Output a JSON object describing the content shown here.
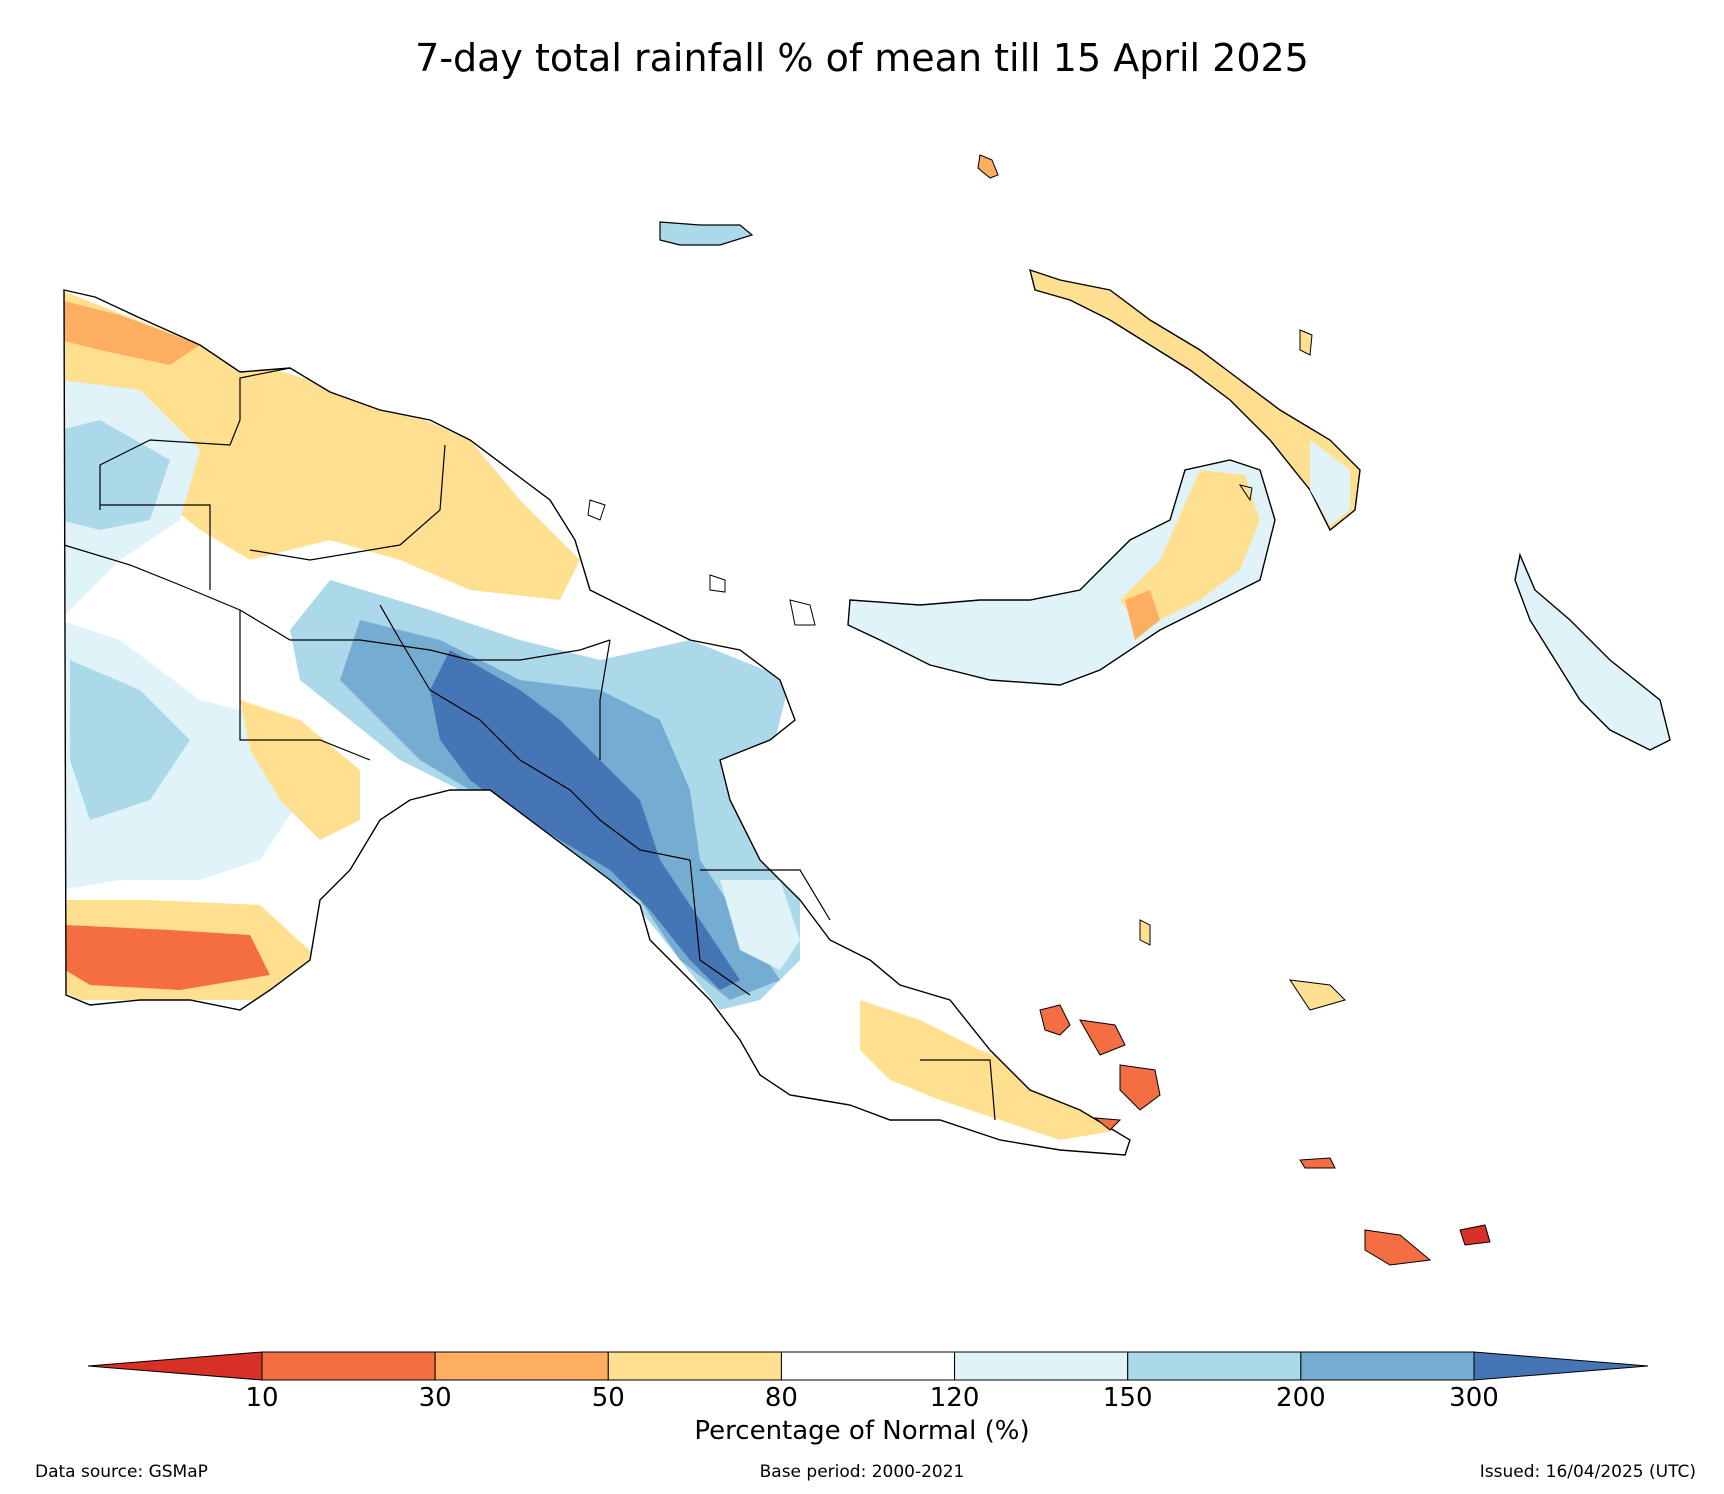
{
  "title": "7-day total rainfall % of mean till 15 April 2025",
  "colorbar": {
    "label": "Percentage of Normal (%)",
    "ticks": [
      "10",
      "30",
      "50",
      "80",
      "120",
      "150",
      "200",
      "300"
    ],
    "colors": [
      "#d73027",
      "#f46d43",
      "#fdae61",
      "#fee090",
      "#ffffff",
      "#e0f3f8",
      "#abd9e9",
      "#74add1",
      "#4575b4"
    ]
  },
  "footer": {
    "source": "Data source: GSMaP",
    "base_period": "Base period: 2000-2021",
    "issued": "Issued: 16/04/2025 (UTC)"
  },
  "map": {
    "region": "Papua New Guinea",
    "outline_color": "#000000"
  }
}
